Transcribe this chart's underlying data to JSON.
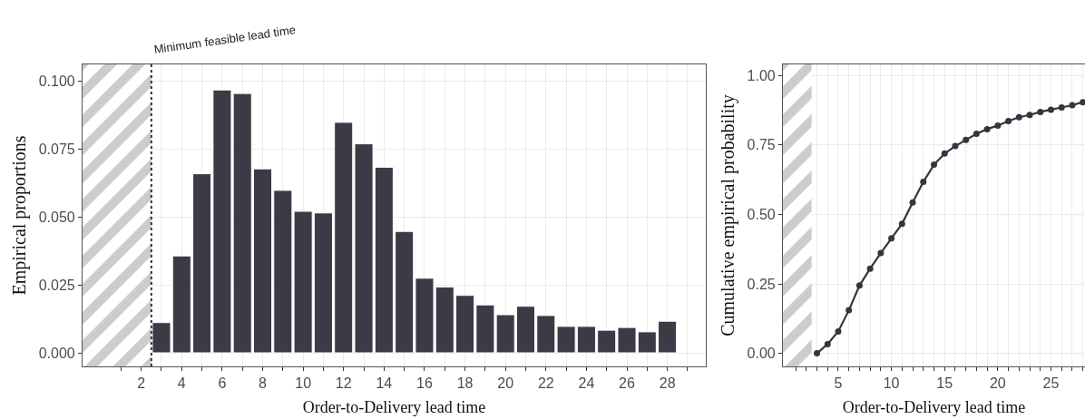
{
  "chart_data": [
    {
      "type": "bar",
      "xlabel": "Order-to-Delivery lead time",
      "ylabel": "Empirical proportions",
      "x": [
        3,
        4,
        5,
        6,
        7,
        8,
        9,
        10,
        11,
        12,
        13,
        14,
        15,
        16,
        17,
        18,
        19,
        20,
        21,
        22,
        23,
        24,
        25,
        26,
        27,
        28
      ],
      "values": [
        0.0111,
        0.0356,
        0.0658,
        0.0966,
        0.0953,
        0.0676,
        0.0597,
        0.052,
        0.0514,
        0.0847,
        0.0768,
        0.0682,
        0.0446,
        0.0274,
        0.0242,
        0.0211,
        0.0176,
        0.014,
        0.0171,
        0.0137,
        0.0097,
        0.0097,
        0.0083,
        0.0093,
        0.0077,
        0.0116
      ],
      "color": "#3b3b45",
      "xlim": [
        -0.9,
        29.9
      ],
      "xticks": [
        {
          "value": 1,
          "label": null
        },
        2,
        {
          "value": 3,
          "label": null
        },
        4,
        {
          "value": 5,
          "label": null
        },
        6,
        {
          "value": 7,
          "label": null
        },
        8,
        {
          "value": 9,
          "label": null
        },
        10,
        {
          "value": 11,
          "label": null
        },
        12,
        {
          "value": 13,
          "label": null
        },
        14,
        {
          "value": 15,
          "label": null
        },
        16,
        {
          "value": 17,
          "label": null
        },
        18,
        {
          "value": 19,
          "label": null
        },
        20,
        {
          "value": 21,
          "label": null
        },
        22,
        {
          "value": 23,
          "label": null
        },
        24,
        {
          "value": 25,
          "label": null
        },
        26,
        {
          "value": 27,
          "label": null
        },
        28,
        {
          "value": 29,
          "label": null
        }
      ],
      "ylim": [
        -0.005,
        0.106
      ],
      "yticks": [
        {
          "value": 0,
          "label": "0.000"
        },
        {
          "value": 0.025,
          "label": "0.025"
        },
        {
          "value": 0.05,
          "label": "0.050"
        },
        {
          "value": 0.075,
          "label": "0.075"
        },
        {
          "value": 0.1,
          "label": "0.100"
        }
      ],
      "grid": true,
      "bands": [
        {
          "axis": "x",
          "from": -0.9,
          "to": 2.5,
          "color": "#999999"
        }
      ],
      "ref_lines": [
        {
          "axis": "x",
          "value": 2.5,
          "label": "Minimum feasible lead time",
          "line_style": "dotted",
          "color": "#333333"
        }
      ]
    },
    {
      "type": "line",
      "xlabel": "Order-to-Delivery lead time",
      "ylabel": "Cumulative empirical probability",
      "x": [
        3,
        4,
        5,
        6,
        7,
        8,
        9,
        10,
        11,
        12,
        13,
        14,
        15,
        16,
        17,
        18,
        19,
        20,
        21,
        22,
        23,
        24,
        25,
        26,
        27,
        28
      ],
      "values": [
        0.0,
        0.033,
        0.079,
        0.155,
        0.244,
        0.305,
        0.361,
        0.414,
        0.466,
        0.543,
        0.617,
        0.679,
        0.719,
        0.746,
        0.768,
        0.79,
        0.807,
        0.82,
        0.836,
        0.85,
        0.858,
        0.869,
        0.877,
        0.885,
        0.893,
        0.904
      ],
      "color": "#35353f",
      "marker": "circle",
      "line_style": "solid",
      "xlim": [
        -0.2,
        28.2
      ],
      "xticks": [
        {
          "value": 1,
          "label": null
        },
        {
          "value": 2,
          "label": null
        },
        {
          "value": 3,
          "label": null
        },
        {
          "value": 4,
          "label": null
        },
        5,
        {
          "value": 6,
          "label": null
        },
        {
          "value": 7,
          "label": null
        },
        {
          "value": 8,
          "label": null
        },
        {
          "value": 9,
          "label": null
        },
        10,
        {
          "value": 11,
          "label": null
        },
        {
          "value": 12,
          "label": null
        },
        {
          "value": 13,
          "label": null
        },
        {
          "value": 14,
          "label": null
        },
        15,
        {
          "value": 16,
          "label": null
        },
        {
          "value": 17,
          "label": null
        },
        {
          "value": 18,
          "label": null
        },
        {
          "value": 19,
          "label": null
        },
        20,
        {
          "value": 21,
          "label": null
        },
        {
          "value": 22,
          "label": null
        },
        {
          "value": 23,
          "label": null
        },
        {
          "value": 24,
          "label": null
        },
        25,
        {
          "value": 26,
          "label": null
        },
        {
          "value": 27,
          "label": null
        },
        {
          "value": 28,
          "label": null
        }
      ],
      "ylim": [
        -0.047,
        1.04
      ],
      "yticks": [
        {
          "value": 0,
          "label": "0.00"
        },
        {
          "value": 0.25,
          "label": "0.25"
        },
        {
          "value": 0.5,
          "label": "0.50"
        },
        {
          "value": 0.75,
          "label": "0.75"
        },
        {
          "value": 1,
          "label": "1.00"
        }
      ],
      "grid": true,
      "bands": [
        {
          "axis": "x",
          "from": -0.2,
          "to": 2.5,
          "color": "#999999"
        }
      ]
    }
  ]
}
